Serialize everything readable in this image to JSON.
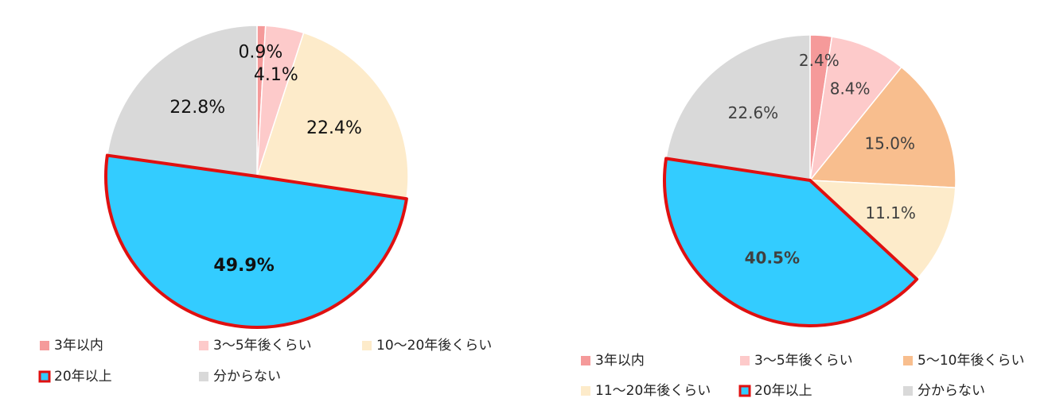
{
  "chart_data": [
    {
      "type": "pie",
      "categories": [
        "3年以内",
        "3～5年後くらい",
        "10～20年後くらい",
        "20年以上",
        "分からない"
      ],
      "values": [
        0.9,
        4.1,
        22.4,
        49.9,
        22.8
      ],
      "value_labels": [
        "0.9%",
        "4.1%",
        "22.4%",
        "49.9%",
        "22.8%"
      ],
      "colors": [
        "#f59a9a",
        "#fdcaca",
        "#fdebca",
        "#33ccff",
        "#d9d9d9"
      ],
      "edgecolors": [
        null,
        null,
        null,
        "#e01010",
        null
      ]
    },
    {
      "type": "pie",
      "categories": [
        "3年以内",
        "3～5年後くらい",
        "5～10年後くらい",
        "11～20年後くらい",
        "20年以上",
        "分からない"
      ],
      "values": [
        2.4,
        8.4,
        15.0,
        11.1,
        40.5,
        22.6
      ],
      "value_labels": [
        "2.4%",
        "8.4%",
        "15.0%",
        "11.1%",
        "40.5%",
        "22.6%"
      ],
      "colors": [
        "#f59a9a",
        "#fdcaca",
        "#f8be8e",
        "#fdebca",
        "#33ccff",
        "#d9d9d9"
      ],
      "edgecolors": [
        null,
        null,
        null,
        null,
        "#e01010",
        null
      ]
    }
  ]
}
